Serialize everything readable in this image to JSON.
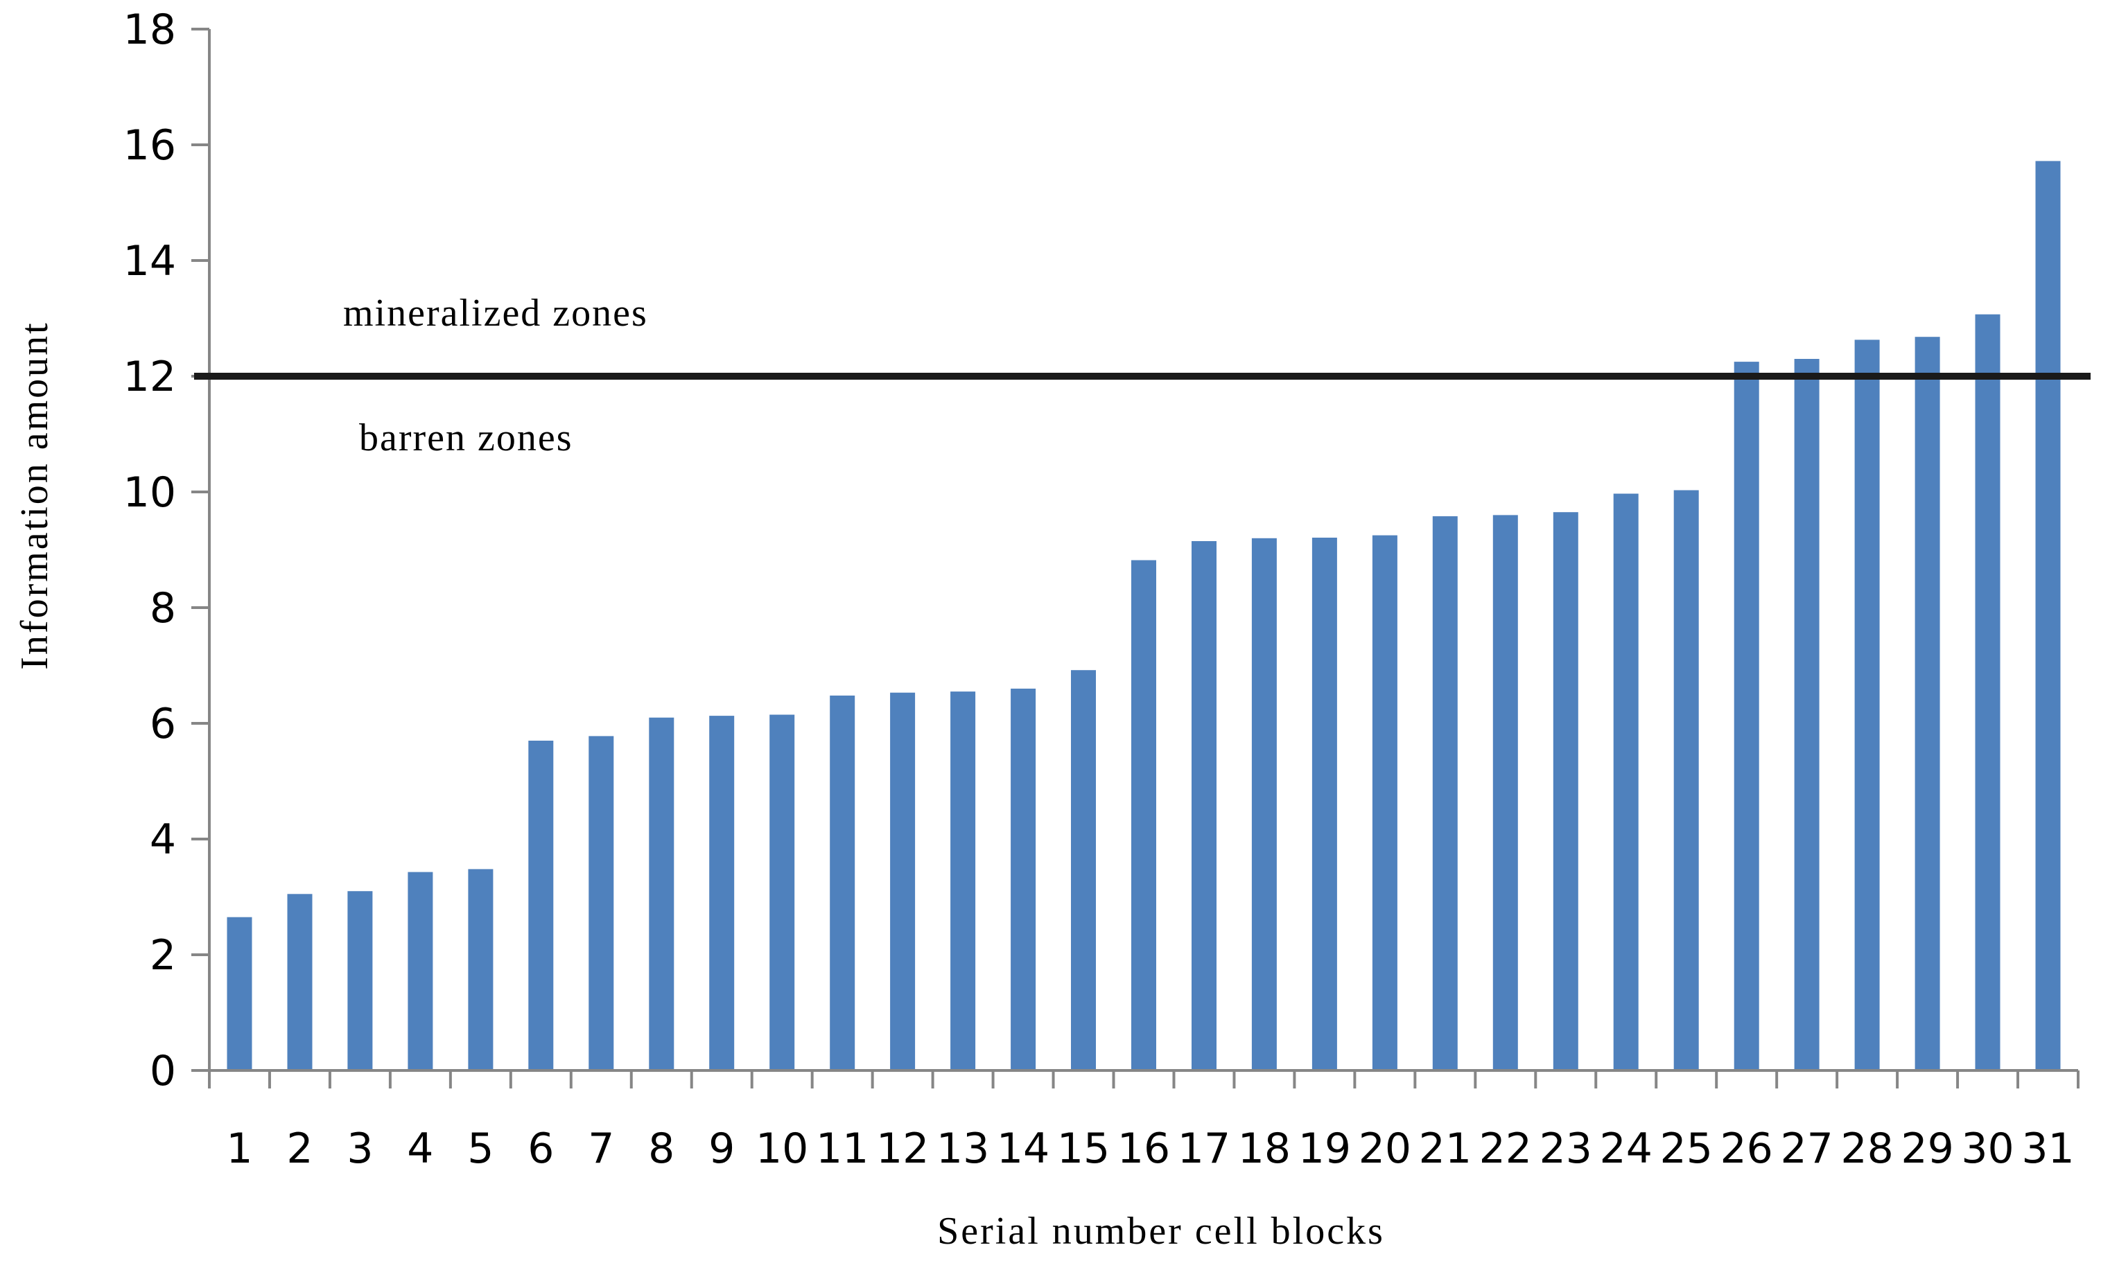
{
  "chart_data": {
    "type": "bar",
    "title": "",
    "xlabel": "Serial number cell blocks",
    "ylabel": "Information amount",
    "categories": [
      "1",
      "2",
      "3",
      "4",
      "5",
      "6",
      "7",
      "8",
      "9",
      "10",
      "11",
      "12",
      "13",
      "14",
      "15",
      "16",
      "17",
      "18",
      "19",
      "20",
      "21",
      "22",
      "23",
      "24",
      "25",
      "26",
      "27",
      "28",
      "29",
      "30",
      "31"
    ],
    "values": [
      2.65,
      3.05,
      3.1,
      3.43,
      3.48,
      5.7,
      5.78,
      6.1,
      6.13,
      6.15,
      6.48,
      6.53,
      6.55,
      6.6,
      6.92,
      8.82,
      9.15,
      9.2,
      9.21,
      9.25,
      9.58,
      9.6,
      9.65,
      9.97,
      10.03,
      12.25,
      12.3,
      12.63,
      12.68,
      13.07,
      15.72
    ],
    "ylim": [
      0,
      18
    ],
    "yticks": [
      0,
      2,
      4,
      6,
      8,
      10,
      12,
      14,
      16,
      18
    ],
    "grid": false,
    "legend": "none",
    "threshold": {
      "value": 12,
      "upper_label": "mineralized zones",
      "lower_label": "barren zones"
    },
    "colors": {
      "bar": "#4f81bd",
      "axis": "#868686",
      "threshold": "#1a1a1a"
    }
  }
}
